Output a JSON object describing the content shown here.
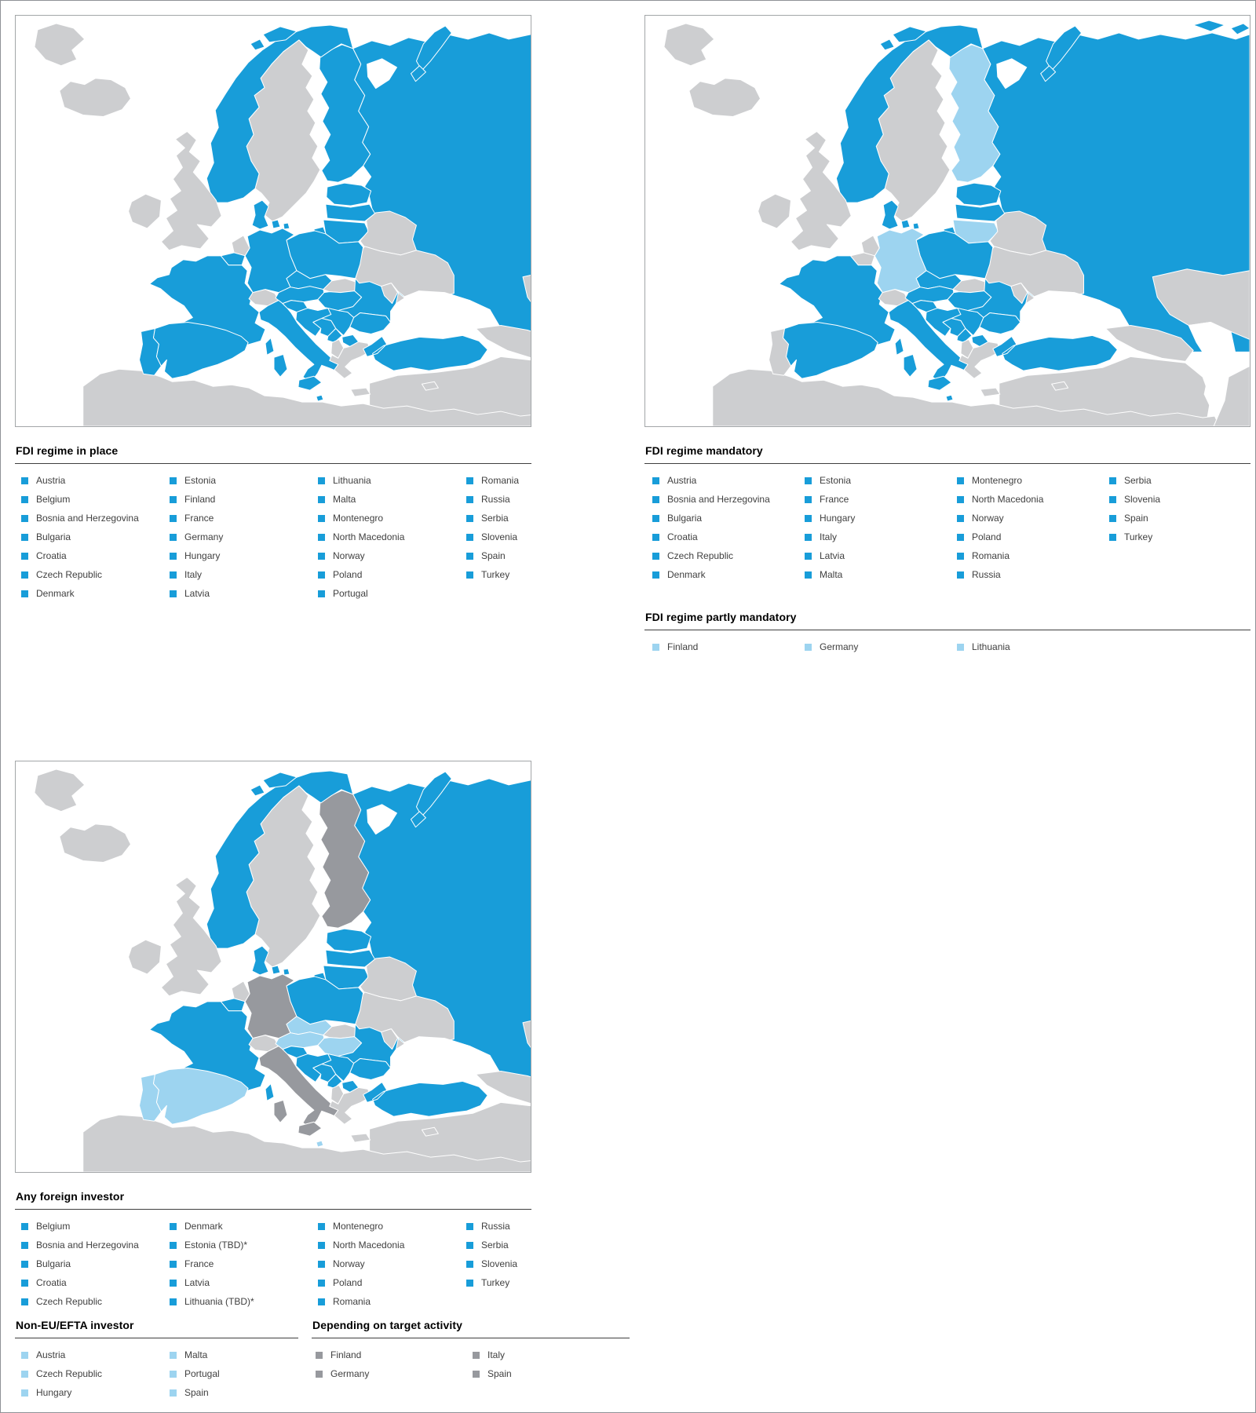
{
  "palette": {
    "highlight": "#189dd9",
    "partial": "#9dd4f0",
    "restricted": "#97999e",
    "inactive": "#cdced0",
    "sea": "#ffffff",
    "border": "#ffffff"
  },
  "panels": [
    {
      "id": "fdi-regime-in-place",
      "map_status": {
        "highlight": [
          "austria",
          "belgium",
          "bosnia-and-herzegovina",
          "bulgaria",
          "croatia",
          "czech-republic",
          "denmark",
          "estonia",
          "finland",
          "france",
          "germany",
          "hungary",
          "italy",
          "latvia",
          "lithuania",
          "malta",
          "montenegro",
          "north-macedonia",
          "norway",
          "poland",
          "portugal",
          "romania",
          "russia",
          "serbia",
          "slovenia",
          "spain",
          "turkey"
        ],
        "partial": [],
        "restricted": []
      },
      "sections": [
        {
          "title": "FDI regime in place",
          "swatch": "highlight",
          "columns": [
            [
              "Austria",
              "Belgium",
              "Bosnia and Herzegovina",
              "Bulgaria",
              "Croatia",
              "Czech Republic",
              "Denmark"
            ],
            [
              "Estonia",
              "Finland",
              "France",
              "Germany",
              "Hungary",
              "Italy",
              "Latvia"
            ],
            [
              "Lithuania",
              "Malta",
              "Montenegro",
              "North Macedonia",
              "Norway",
              "Poland",
              "Portugal"
            ],
            [
              "Romania",
              "Russia",
              "Serbia",
              "Slovenia",
              "Spain",
              "Turkey"
            ]
          ]
        }
      ]
    },
    {
      "id": "fdi-regime-mandatory",
      "map_status": {
        "highlight": [
          "austria",
          "bosnia-and-herzegovina",
          "bulgaria",
          "croatia",
          "czech-republic",
          "denmark",
          "estonia",
          "france",
          "hungary",
          "italy",
          "latvia",
          "malta",
          "montenegro",
          "north-macedonia",
          "norway",
          "poland",
          "romania",
          "russia",
          "serbia",
          "slovenia",
          "spain",
          "turkey"
        ],
        "partial": [
          "finland",
          "germany",
          "lithuania"
        ],
        "restricted": []
      },
      "sections": [
        {
          "title": "FDI regime mandatory",
          "swatch": "highlight",
          "columns": [
            [
              "Austria",
              "Bosnia and Herzegovina",
              "Bulgaria",
              "Croatia",
              "Czech Republic",
              "Denmark"
            ],
            [
              "Estonia",
              "France",
              "Hungary",
              "Italy",
              "Latvia",
              "Malta"
            ],
            [
              "Montenegro",
              "North Macedonia",
              "Norway",
              "Poland",
              "Romania",
              "Russia"
            ],
            [
              "Serbia",
              "Slovenia",
              "Spain",
              "Turkey"
            ]
          ]
        },
        {
          "title": "FDI regime partly mandatory",
          "swatch": "partial",
          "columns": [
            [
              "Finland"
            ],
            [
              "Germany"
            ],
            [
              "Lithuania"
            ]
          ]
        }
      ]
    },
    {
      "id": "any-foreign-investor",
      "map_status": {
        "highlight": [
          "belgium",
          "bosnia-and-herzegovina",
          "bulgaria",
          "croatia",
          "denmark",
          "estonia",
          "france",
          "latvia",
          "lithuania",
          "montenegro",
          "north-macedonia",
          "norway",
          "poland",
          "romania",
          "russia",
          "serbia",
          "slovenia",
          "turkey"
        ],
        "partial": [
          "austria",
          "czech-republic",
          "hungary",
          "malta",
          "portugal",
          "spain"
        ],
        "restricted": [
          "finland",
          "germany",
          "italy"
        ]
      },
      "sections": [
        {
          "title": "Any foreign investor",
          "swatch": "highlight",
          "columns": [
            [
              "Belgium",
              "Bosnia and Herzegovina",
              "Bulgaria",
              "Croatia",
              "Czech Republic"
            ],
            [
              "Denmark",
              "Estonia (TBD)*",
              "France",
              "Latvia",
              "Lithuania (TBD)*"
            ],
            [
              "Montenegro",
              "North Macedonia",
              "Norway",
              "Poland",
              "Romania"
            ],
            [
              "Russia",
              "Serbia",
              "Slovenia",
              "Turkey"
            ]
          ]
        }
      ],
      "split_sections": [
        {
          "title": "Non-EU/EFTA investor",
          "swatch": "partial",
          "columns": [
            [
              "Austria",
              "Czech Republic",
              "Hungary"
            ],
            [
              "Malta",
              "Portugal",
              "Spain"
            ]
          ]
        },
        {
          "title": "Depending on target activity",
          "swatch": "restricted",
          "columns": [
            [
              "Finland",
              "Germany"
            ],
            [
              "Italy",
              "Spain"
            ]
          ]
        }
      ]
    }
  ]
}
